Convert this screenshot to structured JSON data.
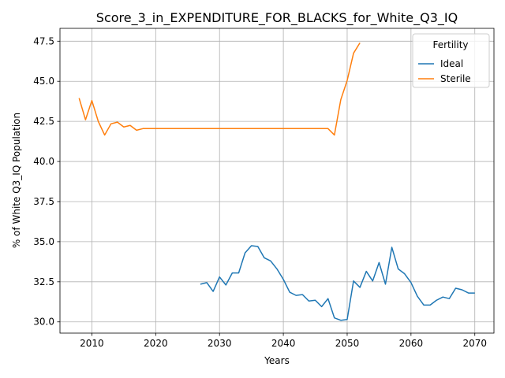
{
  "chart_data": {
    "type": "line",
    "title": "Score_3_in_EXPENDITURE_FOR_BLACKS_for_White_Q3_IQ",
    "xlabel": "Years",
    "ylabel": "% of White Q3_IQ Population",
    "xlim": [
      2005,
      2073
    ],
    "ylim": [
      29.3,
      48.3
    ],
    "xticks": [
      "2010",
      "2020",
      "2030",
      "2040",
      "2050",
      "2060",
      "2070"
    ],
    "yticks": [
      "30.0",
      "32.5",
      "35.0",
      "37.5",
      "40.0",
      "42.5",
      "45.0",
      "47.5"
    ],
    "grid": true,
    "legend": {
      "title": "Fertility",
      "position": "top-right"
    },
    "series": [
      {
        "name": "Ideal",
        "color": "#1f77b4",
        "points": [
          [
            2027,
            32.35
          ],
          [
            2028,
            32.45
          ],
          [
            2029,
            31.9
          ],
          [
            2030,
            32.8
          ],
          [
            2031,
            32.3
          ],
          [
            2032,
            33.05
          ],
          [
            2033,
            33.05
          ],
          [
            2034,
            34.3
          ],
          [
            2035,
            34.75
          ],
          [
            2036,
            34.7
          ],
          [
            2037,
            34.0
          ],
          [
            2038,
            33.8
          ],
          [
            2039,
            33.3
          ],
          [
            2040,
            32.65
          ],
          [
            2041,
            31.85
          ],
          [
            2042,
            31.65
          ],
          [
            2043,
            31.7
          ],
          [
            2044,
            31.3
          ],
          [
            2045,
            31.35
          ],
          [
            2046,
            30.95
          ],
          [
            2047,
            31.45
          ],
          [
            2048,
            30.25
          ],
          [
            2049,
            30.1
          ],
          [
            2050,
            30.15
          ],
          [
            2051,
            32.55
          ],
          [
            2052,
            32.15
          ],
          [
            2053,
            33.15
          ],
          [
            2054,
            32.55
          ],
          [
            2055,
            33.7
          ],
          [
            2056,
            32.35
          ],
          [
            2057,
            34.65
          ],
          [
            2058,
            33.3
          ],
          [
            2059,
            33.0
          ],
          [
            2060,
            32.45
          ],
          [
            2061,
            31.6
          ],
          [
            2062,
            31.05
          ],
          [
            2063,
            31.05
          ],
          [
            2064,
            31.35
          ],
          [
            2065,
            31.55
          ],
          [
            2066,
            31.45
          ],
          [
            2067,
            32.1
          ],
          [
            2068,
            32.0
          ],
          [
            2069,
            31.8
          ],
          [
            2070,
            31.8
          ]
        ]
      },
      {
        "name": "Sterile",
        "color": "#ff7f0e",
        "points": [
          [
            2008,
            43.95
          ],
          [
            2009,
            42.6
          ],
          [
            2010,
            43.8
          ],
          [
            2011,
            42.5
          ],
          [
            2012,
            41.65
          ],
          [
            2013,
            42.35
          ],
          [
            2014,
            42.45
          ],
          [
            2015,
            42.15
          ],
          [
            2016,
            42.25
          ],
          [
            2017,
            41.95
          ],
          [
            2018,
            42.05
          ],
          [
            2019,
            42.05
          ],
          [
            2020,
            42.05
          ],
          [
            2021,
            42.05
          ],
          [
            2022,
            42.05
          ],
          [
            2023,
            42.05
          ],
          [
            2024,
            42.05
          ],
          [
            2025,
            42.05
          ],
          [
            2026,
            42.05
          ],
          [
            2027,
            42.05
          ],
          [
            2028,
            42.05
          ],
          [
            2029,
            42.05
          ],
          [
            2030,
            42.05
          ],
          [
            2031,
            42.05
          ],
          [
            2032,
            42.05
          ],
          [
            2033,
            42.05
          ],
          [
            2034,
            42.05
          ],
          [
            2035,
            42.05
          ],
          [
            2036,
            42.05
          ],
          [
            2037,
            42.05
          ],
          [
            2038,
            42.05
          ],
          [
            2039,
            42.05
          ],
          [
            2040,
            42.05
          ],
          [
            2041,
            42.05
          ],
          [
            2042,
            42.05
          ],
          [
            2043,
            42.05
          ],
          [
            2044,
            42.05
          ],
          [
            2045,
            42.05
          ],
          [
            2046,
            42.05
          ],
          [
            2047,
            42.05
          ],
          [
            2048,
            41.65
          ],
          [
            2049,
            43.85
          ],
          [
            2050,
            45.05
          ],
          [
            2051,
            46.75
          ],
          [
            2052,
            47.4
          ]
        ]
      }
    ]
  }
}
